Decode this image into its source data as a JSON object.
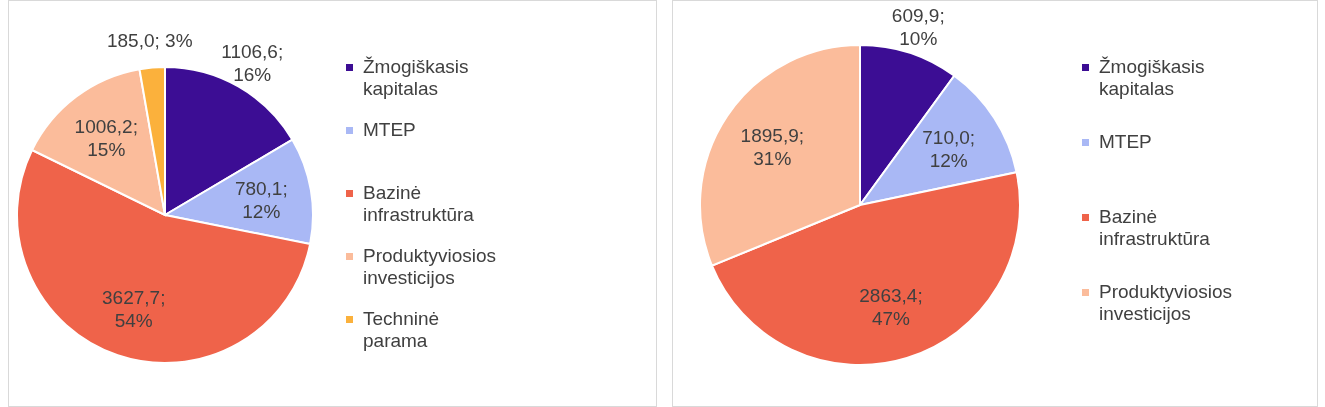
{
  "chart_data": [
    {
      "type": "pie",
      "categories": [
        "Žmogiškasis kapitalas",
        "MTEP",
        "Bazinė infrastruktūra",
        "Produktyviosios investicijos",
        "Techninė parama"
      ],
      "values": [
        1106.6,
        780.1,
        3627.7,
        1006.2,
        185.0
      ],
      "colors": [
        "#3c0d94",
        "#a9b8f5",
        "#ef634a",
        "#fbbc9b",
        "#fbb13c"
      ],
      "value_labels": [
        "1106,6; 16%",
        "780,1; 12%",
        "3627,7; 54%",
        "1006,2; 15%",
        "185,0; 3%"
      ],
      "legend": "right"
    },
    {
      "type": "pie",
      "categories": [
        "Žmogiškasis kapitalas",
        "MTEP",
        "Bazinė infrastruktūra",
        "Produktyviosios investicijos"
      ],
      "values": [
        609.9,
        710.0,
        2863.4,
        1895.9
      ],
      "colors": [
        "#3c0d94",
        "#a9b8f5",
        "#ef634a",
        "#fbbc9b"
      ],
      "value_labels": [
        "609,9; 10%",
        "710,0; 12%",
        "2863,4; 47%",
        "1895,9; 31%"
      ],
      "legend": "right"
    }
  ]
}
